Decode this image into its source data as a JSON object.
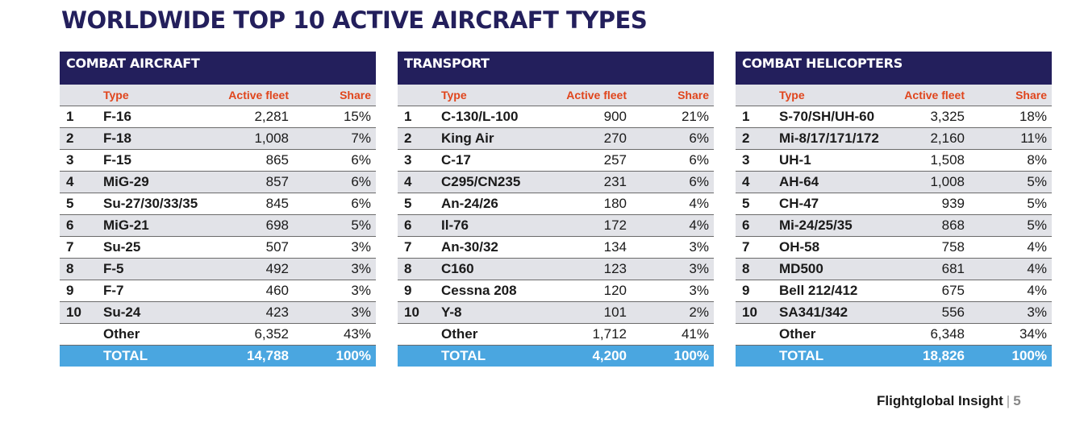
{
  "title": "WORLDWIDE TOP 10 ACTIVE AIRCRAFT TYPES",
  "colors": {
    "title": "#231f5c",
    "header_bg": "#231f5c",
    "column_header": "#e0451c",
    "stripe": "#e2e3e8",
    "total_bg": "#4aa6e0"
  },
  "headers": {
    "type": "Type",
    "fleet": "Active fleet",
    "share": "Share"
  },
  "panels": [
    {
      "heading": "COMBAT AIRCRAFT",
      "rows": [
        {
          "rank": "1",
          "type": "F-16",
          "fleet": "2,281",
          "share": "15%"
        },
        {
          "rank": "2",
          "type": "F-18",
          "fleet": "1,008",
          "share": "7%"
        },
        {
          "rank": "3",
          "type": "F-15",
          "fleet": "865",
          "share": "6%"
        },
        {
          "rank": "4",
          "type": "MiG-29",
          "fleet": "857",
          "share": "6%"
        },
        {
          "rank": "5",
          "type": "Su-27/30/33/35",
          "fleet": "845",
          "share": "6%"
        },
        {
          "rank": "6",
          "type": "MiG-21",
          "fleet": "698",
          "share": "5%"
        },
        {
          "rank": "7",
          "type": "Su-25",
          "fleet": "507",
          "share": "3%"
        },
        {
          "rank": "8",
          "type": "F-5",
          "fleet": "492",
          "share": "3%"
        },
        {
          "rank": "9",
          "type": "F-7",
          "fleet": "460",
          "share": "3%"
        },
        {
          "rank": "10",
          "type": "Su-24",
          "fleet": "423",
          "share": "3%"
        }
      ],
      "other": {
        "label": "Other",
        "fleet": "6,352",
        "share": "43%"
      },
      "total": {
        "label": "TOTAL",
        "fleet": "14,788",
        "share": "100%"
      }
    },
    {
      "heading": "TRANSPORT",
      "rows": [
        {
          "rank": "1",
          "type": "C-130/L-100",
          "fleet": "900",
          "share": "21%"
        },
        {
          "rank": "2",
          "type": "King Air",
          "fleet": "270",
          "share": "6%"
        },
        {
          "rank": "3",
          "type": "C-17",
          "fleet": "257",
          "share": "6%"
        },
        {
          "rank": "4",
          "type": "C295/CN235",
          "fleet": "231",
          "share": "6%"
        },
        {
          "rank": "5",
          "type": "An-24/26",
          "fleet": "180",
          "share": "4%"
        },
        {
          "rank": "6",
          "type": "Il-76",
          "fleet": "172",
          "share": "4%"
        },
        {
          "rank": "7",
          "type": "An-30/32",
          "fleet": "134",
          "share": "3%"
        },
        {
          "rank": "8",
          "type": "C160",
          "fleet": "123",
          "share": "3%"
        },
        {
          "rank": "9",
          "type": "Cessna 208",
          "fleet": "120",
          "share": "3%"
        },
        {
          "rank": "10",
          "type": "Y-8",
          "fleet": "101",
          "share": "2%"
        }
      ],
      "other": {
        "label": "Other",
        "fleet": "1,712",
        "share": "41%"
      },
      "total": {
        "label": "TOTAL",
        "fleet": "4,200",
        "share": "100%"
      }
    },
    {
      "heading": "COMBAT HELICOPTERS",
      "rows": [
        {
          "rank": "1",
          "type": "S-70/SH/UH-60",
          "fleet": "3,325",
          "share": "18%"
        },
        {
          "rank": "2",
          "type": "Mi-8/17/171/172",
          "fleet": "2,160",
          "share": "11%"
        },
        {
          "rank": "3",
          "type": "UH-1",
          "fleet": "1,508",
          "share": "8%"
        },
        {
          "rank": "4",
          "type": "AH-64",
          "fleet": "1,008",
          "share": "5%"
        },
        {
          "rank": "5",
          "type": "CH-47",
          "fleet": "939",
          "share": "5%"
        },
        {
          "rank": "6",
          "type": "Mi-24/25/35",
          "fleet": "868",
          "share": "5%"
        },
        {
          "rank": "7",
          "type": "OH-58",
          "fleet": "758",
          "share": "4%"
        },
        {
          "rank": "8",
          "type": "MD500",
          "fleet": "681",
          "share": "4%"
        },
        {
          "rank": "9",
          "type": "Bell 212/412",
          "fleet": "675",
          "share": "4%"
        },
        {
          "rank": "10",
          "type": "SA341/342",
          "fleet": "556",
          "share": "3%"
        }
      ],
      "other": {
        "label": "Other",
        "fleet": "6,348",
        "share": "34%"
      },
      "total": {
        "label": "TOTAL",
        "fleet": "18,826",
        "share": "100%"
      }
    }
  ],
  "footer": {
    "brand": "Flightglobal Insight",
    "separator": "|",
    "page": "5"
  }
}
